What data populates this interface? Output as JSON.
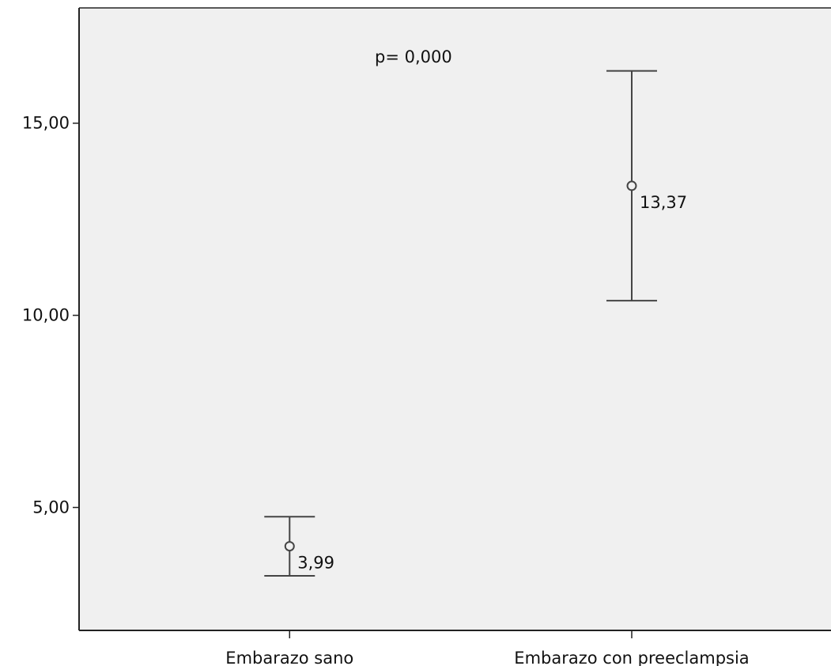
{
  "chart_data": {
    "type": "errorbar",
    "title": "",
    "xlabel": "",
    "ylabel": "",
    "ylim": [
      1.8,
      18.0
    ],
    "yticks": [
      5,
      10,
      15
    ],
    "ytick_labels": [
      "5,00",
      "10,00",
      "15,00"
    ],
    "grid": false,
    "legend": "none",
    "categories": [
      "Embarazo sano",
      "Embarazo con preeclampsia"
    ],
    "points": [
      {
        "category": "Embarazo sano",
        "mean": 3.99,
        "lower": 3.22,
        "upper": 4.76,
        "label": "3,99"
      },
      {
        "category": "Embarazo con preeclampsia",
        "mean": 13.37,
        "lower": 10.38,
        "upper": 16.36,
        "label": "13,37"
      }
    ],
    "annotations": [
      {
        "text": "p= 0,000"
      }
    ],
    "colors": {
      "plot_background": "#f0f0f0",
      "axis": "#222222",
      "marks": "#444444"
    }
  }
}
